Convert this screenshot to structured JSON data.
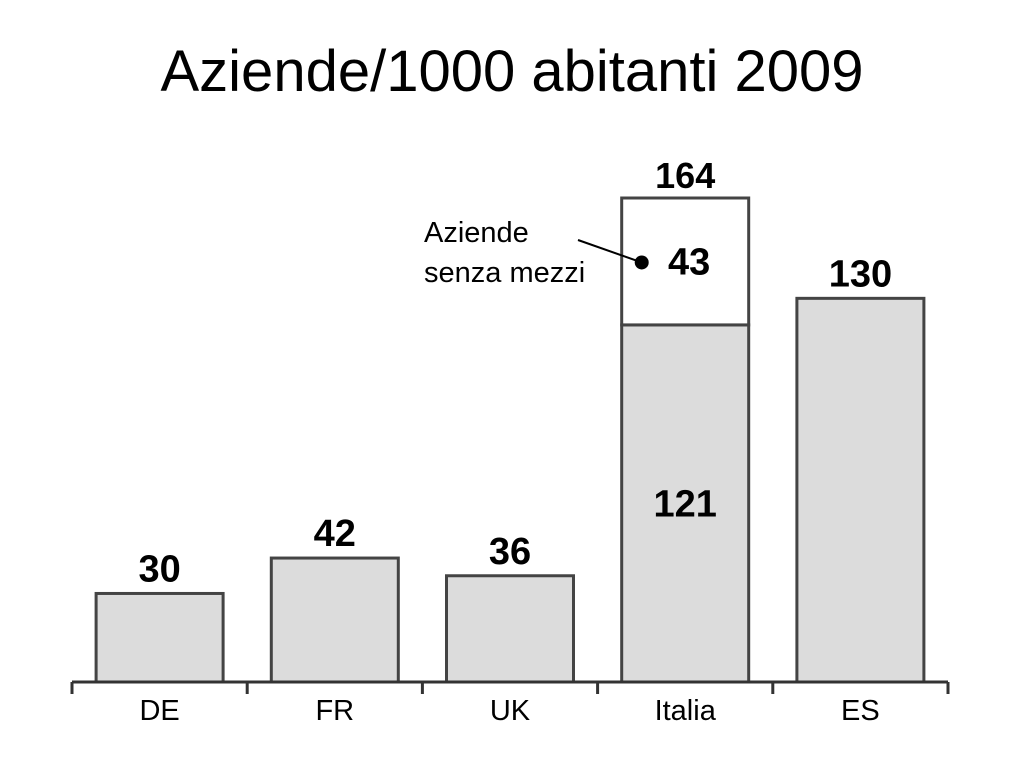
{
  "slide": {
    "title": "Aziende/1000 abitanti 2009"
  },
  "chart_data": {
    "type": "bar",
    "stacked": true,
    "title": "Aziende/1000 abitanti 2009",
    "xlabel": "",
    "ylabel": "",
    "categories": [
      "DE",
      "FR",
      "UK",
      "Italia",
      "ES"
    ],
    "series": [
      {
        "values": [
          30,
          42,
          36,
          121,
          130
        ]
      },
      {
        "values": [
          0,
          0,
          0,
          43,
          0
        ]
      }
    ],
    "totals": [
      null,
      null,
      null,
      164,
      null
    ],
    "ylim": [
      0,
      170
    ],
    "grid": false,
    "annotation": {
      "lines": [
        "Aziende",
        "senza mezzi"
      ],
      "category": "Italia"
    },
    "colors": {
      "base": "#dcdcdc",
      "stack": "#ffffff",
      "outline": "#444444"
    }
  }
}
